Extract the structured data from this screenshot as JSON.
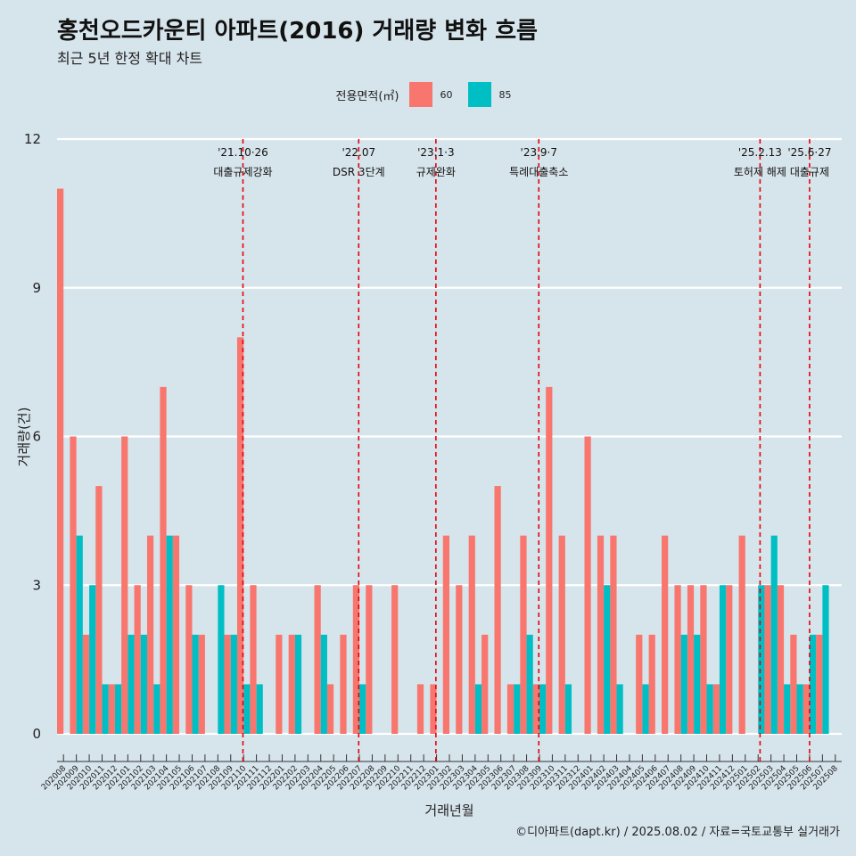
{
  "header": {
    "title": "홍천오드카운티 아파트(2016) 거래량 변화 흐름",
    "subtitle": "최근 5년 한정 확대 차트"
  },
  "legend": {
    "title": "전용면적(㎡)",
    "items": [
      {
        "label": "60",
        "color": "#f8766d"
      },
      {
        "label": "85",
        "color": "#00bfc4"
      }
    ]
  },
  "caption": "©디아파트(dapt.kr) / 2025.08.02 / 자료=국토교통부 실거래가",
  "chart_data": {
    "type": "bar",
    "title": "홍천오드카운티 아파트(2016) 거래량 변화 흐름",
    "xlabel": "거래년월",
    "ylabel": "거래량(건)",
    "ylim": [
      0,
      12
    ],
    "yticks": [
      0,
      3,
      6,
      9,
      12
    ],
    "categories": [
      "202008",
      "202009",
      "202010",
      "202011",
      "202012",
      "202101",
      "202102",
      "202103",
      "202104",
      "202105",
      "202106",
      "202107",
      "202108",
      "202109",
      "202110",
      "202111",
      "202112",
      "202201",
      "202202",
      "202203",
      "202204",
      "202205",
      "202206",
      "202207",
      "202208",
      "202209",
      "202210",
      "202211",
      "202212",
      "202301",
      "202302",
      "202303",
      "202304",
      "202305",
      "202306",
      "202307",
      "202308",
      "202309",
      "202310",
      "202311",
      "202312",
      "202401",
      "202402",
      "202403",
      "202404",
      "202405",
      "202406",
      "202407",
      "202408",
      "202409",
      "202410",
      "202411",
      "202412",
      "202501",
      "202502",
      "202503",
      "202504",
      "202505",
      "202506",
      "202507",
      "202508"
    ],
    "series": [
      {
        "name": "60",
        "color": "#f8766d",
        "values": [
          11,
          6,
          2,
          5,
          1,
          6,
          3,
          4,
          7,
          4,
          3,
          2,
          null,
          2,
          8,
          3,
          null,
          2,
          2,
          null,
          3,
          1,
          2,
          3,
          3,
          null,
          3,
          null,
          1,
          1,
          4,
          3,
          4,
          2,
          5,
          1,
          4,
          1,
          7,
          4,
          null,
          6,
          4,
          4,
          null,
          2,
          2,
          4,
          3,
          3,
          3,
          1,
          3,
          4,
          null,
          3,
          3,
          2,
          1,
          2,
          null
        ]
      },
      {
        "name": "85",
        "color": "#00bfc4",
        "values": [
          null,
          4,
          3,
          1,
          1,
          2,
          2,
          1,
          4,
          null,
          2,
          null,
          3,
          2,
          1,
          1,
          null,
          null,
          2,
          null,
          2,
          null,
          null,
          1,
          null,
          null,
          null,
          null,
          null,
          null,
          null,
          null,
          1,
          null,
          null,
          1,
          2,
          1,
          null,
          1,
          null,
          null,
          3,
          1,
          null,
          1,
          null,
          null,
          2,
          2,
          1,
          3,
          null,
          null,
          3,
          4,
          1,
          1,
          2,
          3,
          null
        ]
      }
    ],
    "annotations": [
      {
        "category": "202110",
        "date": "'21.10·26",
        "label": "대출규제강화"
      },
      {
        "category": "202207",
        "date": "'22.07",
        "label": "DSR 3단계"
      },
      {
        "category": "202301",
        "date": "'23.1·3",
        "label": "규제완화"
      },
      {
        "category": "202309",
        "date": "'23.9·7",
        "label": "특례대출축소"
      },
      {
        "category": "202502",
        "date": "'25.2.13",
        "label": "토허제 해제"
      },
      {
        "category": "202506",
        "date": "'25.6·27",
        "label": "대출규제"
      }
    ]
  }
}
